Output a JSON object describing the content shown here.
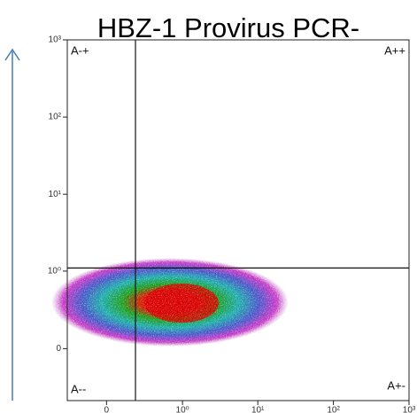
{
  "chart_data": {
    "type": "density",
    "title": "HBZ-1 Provirus PCR-",
    "xlim": [
      -0.3,
      1000
    ],
    "ylim": [
      -0.45,
      1000
    ],
    "xticks": [
      0,
      {
        "value": 1,
        "label": "10⁰"
      },
      {
        "value": 10,
        "label": "10¹"
      },
      {
        "value": 100,
        "label": "10²"
      },
      {
        "value": 1000,
        "label": "10³"
      }
    ],
    "yticks": [
      0,
      {
        "value": 1,
        "label": "10⁰"
      },
      {
        "value": 10,
        "label": "10¹"
      },
      {
        "value": 100,
        "label": "10²"
      },
      {
        "value": 1000,
        "label": "10³"
      }
    ],
    "gate": {
      "x": 0.2,
      "y": 1.1
    },
    "quadrants": {
      "top_left": "A-+",
      "top_right": "A++",
      "bottom_left": "A--",
      "bottom_right": "A+-"
    }
  }
}
